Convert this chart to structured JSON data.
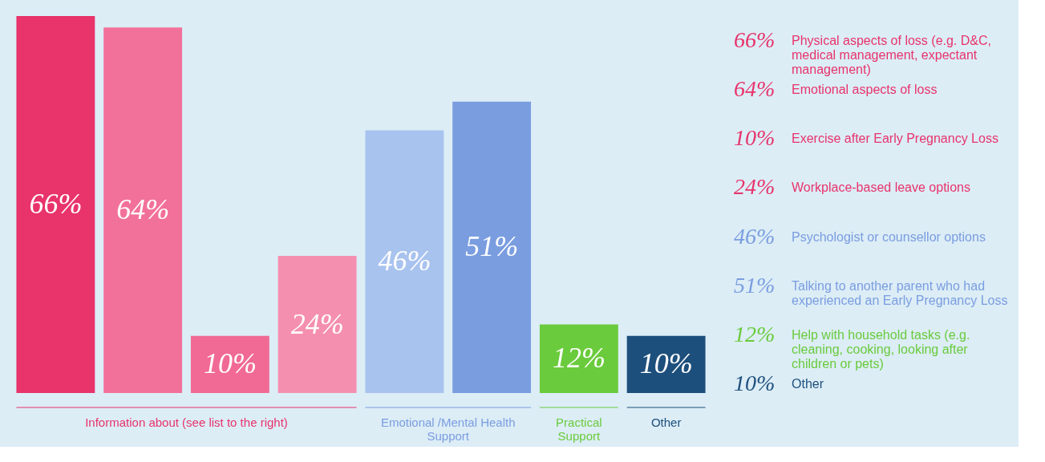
{
  "chart_data": {
    "type": "bar",
    "categories": [
      null,
      null,
      null,
      null,
      null,
      null,
      null,
      null
    ],
    "values": [
      66,
      64,
      10,
      24,
      46,
      51,
      12,
      10
    ],
    "value_labels": [
      "66%",
      "64%",
      "10%",
      "24%",
      "46%",
      "51%",
      "12%",
      "10%"
    ],
    "colors": [
      "#e8336b",
      "#f2719a",
      "#f06a95",
      "#f58fb0",
      "#a9c3ef",
      "#7a9de0",
      "#6acb3c",
      "#1d4f7c"
    ],
    "annotations": [
      "Information about  (see list to the right)",
      "Emotional /Mental Health Support",
      "Practical Support",
      "Other",
      "Physical aspects of loss (e.g. D&C, medical management, expectant management)",
      "Emotional aspects of loss",
      "Exercise after Early Pregnancy Loss",
      "Workplace-based leave options",
      "Psychologist or counsellor options",
      "Talking to another parent who had experienced an Early Pregnancy Loss",
      "Help with household tasks (e.g. cleaning, cooking, looking after children or pets)",
      "Other"
    ]
  }
}
